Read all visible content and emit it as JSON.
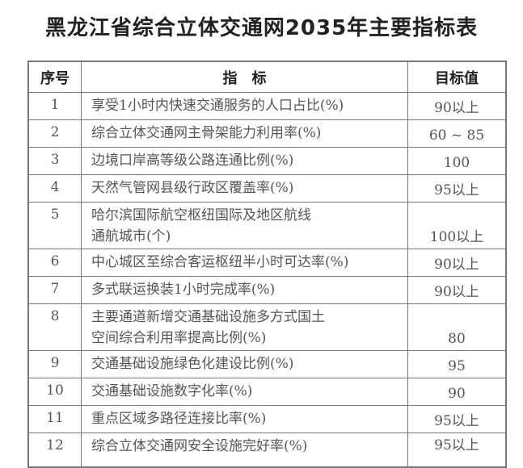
{
  "title": "黑龙江省综合立体交通网2035年主要指标表",
  "headers": {
    "no": "序号",
    "indicator": "指　标",
    "target": "目标值"
  },
  "rows": [
    {
      "no": "1",
      "indicator": "享受1小时内快速交通服务的人口占比(%)",
      "target": "90以上"
    },
    {
      "no": "2",
      "indicator": "综合立体交通网主骨架能力利用率(%)",
      "target": "60 ~ 85"
    },
    {
      "no": "3",
      "indicator": "边境口岸高等级公路连通比例(%)",
      "target": "100"
    },
    {
      "no": "4",
      "indicator": "天然气管网县级行政区覆盖率(%)",
      "target": "95以上"
    },
    {
      "no": "5",
      "indicator": "哈尔滨国际航空枢纽国际及地区航线通航城市(个)",
      "target": "100以上"
    },
    {
      "no": "6",
      "indicator": "中心城区至综合客运枢纽半小时可达率(%)",
      "target": "90以上"
    },
    {
      "no": "7",
      "indicator": "多式联运换装1小时完成率(%)",
      "target": "90以上"
    },
    {
      "no": "8",
      "indicator": "主要通道新增交通基础设施多方式国土空间综合利用率提高比例(%)",
      "target": "80"
    },
    {
      "no": "9",
      "indicator": "交通基础设施绿色化建设比例(%)",
      "target": "95"
    },
    {
      "no": "10",
      "indicator": "交通基础设施数字化率(%)",
      "target": "90"
    },
    {
      "no": "11",
      "indicator": "重点区域多路径连接比率(%)",
      "target": "95以上"
    },
    {
      "no": "12",
      "indicator": "综合立体交通网安全设施完好率(%)",
      "target": "95以上"
    }
  ]
}
